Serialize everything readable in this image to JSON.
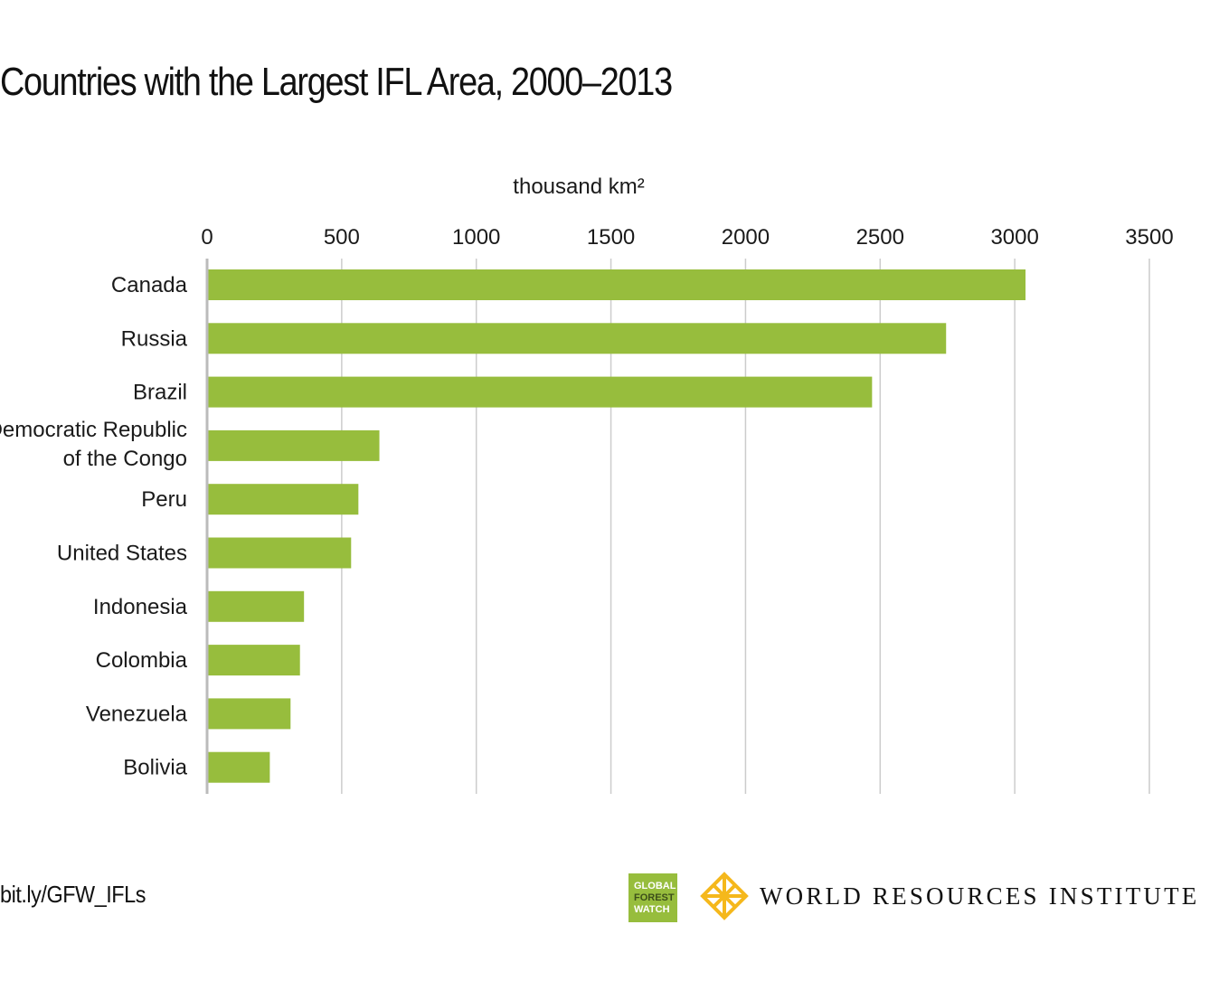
{
  "title": "Countries with the Largest IFL Area, 2000–2013",
  "footer": {
    "link": "bit.ly/GFW_IFLs",
    "gfw_logo": [
      "GLOBAL",
      "FOREST",
      "WATCH"
    ],
    "wri_name": "WORLD RESOURCES INSTITUTE"
  },
  "colors": {
    "bar": "#97bd3d",
    "grid": "#cccccc",
    "axis": "#bbbbbb",
    "wri_gold": "#f5b81c"
  },
  "chart_data": {
    "type": "bar",
    "orientation": "horizontal",
    "xlabel": "thousand km²",
    "xlim": [
      0,
      3500
    ],
    "xticks": [
      "0",
      "500",
      "1000",
      "1500",
      "2000",
      "2500",
      "3000",
      "3500"
    ],
    "grid": true,
    "categories": [
      [
        "Canada"
      ],
      [
        "Russia"
      ],
      [
        "Brazil"
      ],
      [
        "Democratic Republic",
        "of the Congo"
      ],
      [
        "Peru"
      ],
      [
        "United States"
      ],
      [
        "Indonesia"
      ],
      [
        "Colombia"
      ],
      [
        "Venezuela"
      ],
      [
        "Bolivia"
      ]
    ],
    "values": [
      3040,
      2745,
      2470,
      640,
      562,
      535,
      360,
      345,
      310,
      233
    ]
  }
}
